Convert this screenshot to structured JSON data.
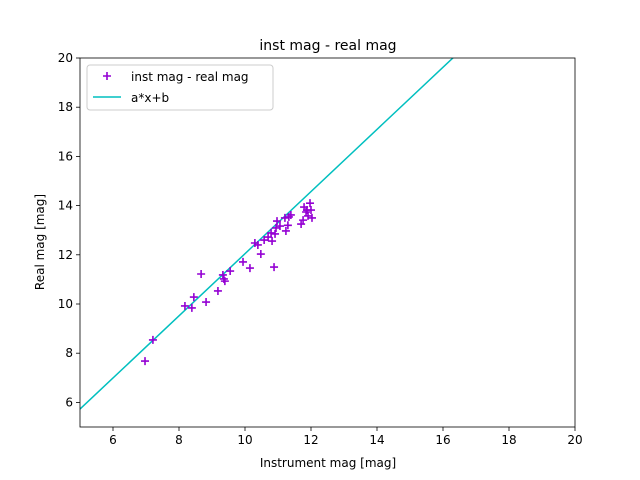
{
  "chart_data": {
    "type": "scatter",
    "title": "inst mag - real mag",
    "xlabel": "Instrument mag [mag]",
    "ylabel": "Real mag [mag]",
    "xlim": [
      5,
      20
    ],
    "ylim": [
      5,
      20
    ],
    "xticks": [
      "6",
      "8",
      "10",
      "12",
      "14",
      "16",
      "18",
      "20"
    ],
    "xtick_values": [
      6,
      8,
      10,
      12,
      14,
      16,
      18,
      20
    ],
    "yticks": [
      "6",
      "8",
      "10",
      "12",
      "14",
      "16",
      "18",
      "20"
    ],
    "ytick_values": [
      6,
      8,
      10,
      12,
      14,
      16,
      18,
      20
    ],
    "grid": false,
    "legend_position": "top-left",
    "series": [
      {
        "name": "inst mag - real mag",
        "kind": "scatter",
        "marker": "+",
        "color": "#9400d3",
        "x": [
          6.97,
          7.21,
          8.18,
          8.39,
          8.45,
          8.67,
          8.82,
          9.18,
          9.33,
          9.36,
          9.39,
          9.55,
          9.94,
          10.15,
          10.3,
          10.39,
          10.48,
          10.58,
          10.7,
          10.79,
          10.82,
          10.91,
          10.88,
          10.97,
          10.94,
          11.06,
          11.21,
          11.24,
          11.3,
          11.39,
          11.33,
          11.7,
          11.76,
          11.79,
          11.85,
          11.91,
          11.97,
          12.0,
          12.03,
          11.88
        ],
        "y": [
          7.68,
          8.54,
          9.92,
          9.84,
          10.28,
          11.22,
          10.08,
          10.53,
          11.18,
          11.02,
          10.93,
          11.34,
          11.71,
          11.46,
          12.48,
          12.4,
          12.03,
          12.6,
          12.72,
          12.89,
          12.56,
          12.85,
          11.5,
          13.37,
          13.09,
          13.17,
          13.5,
          12.97,
          13.2,
          13.62,
          13.54,
          13.25,
          13.41,
          13.94,
          13.74,
          13.58,
          14.1,
          13.82,
          13.5,
          13.82
        ]
      },
      {
        "name": "a*x+b",
        "kind": "line",
        "color": "#00bfbf",
        "slope": 1.263,
        "intercept": -0.585
      }
    ]
  }
}
